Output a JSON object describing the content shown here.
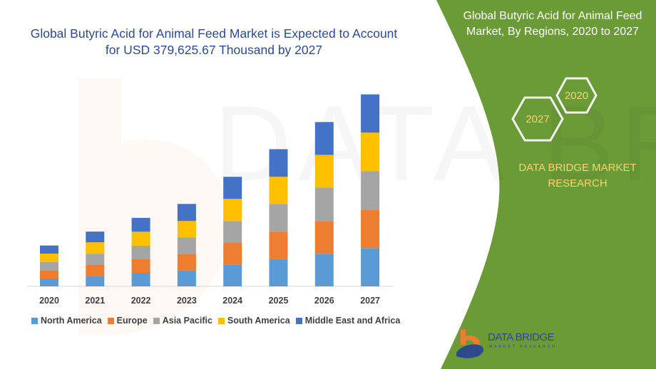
{
  "title": "Global  Butyric Acid for Animal Feed Market is Expected to Account for USD 379,625.67 Thousand by 2027",
  "side_panel": {
    "title": "Global  Butyric Acid for Animal Feed Market, By Regions, 2020 to 2027",
    "hex_labels": [
      "2020",
      "2027"
    ],
    "brand": "DATA BRIDGE MARKET RESEARCH",
    "logo_text": "DATA BRIDGE",
    "logo_subtext": "MARKET RESEARCH",
    "panel_color": "#6b9b37",
    "accent_text_color": "#f5d76e"
  },
  "watermark": "DATA BRIDGE",
  "chart_data": {
    "type": "bar",
    "stacked": true,
    "title": "",
    "xlabel": "",
    "ylabel": "",
    "unit": "USD Thousand",
    "ylim": [
      0,
      400000
    ],
    "grid": false,
    "legend_position": "bottom",
    "categories": [
      "2020",
      "2021",
      "2022",
      "2023",
      "2024",
      "2025",
      "2026",
      "2027"
    ],
    "series": [
      {
        "name": "North America",
        "color": "#5b9bd5",
        "values": [
          15500,
          20700,
          26800,
          32000,
          43200,
          54500,
          64400,
          75700
        ]
      },
      {
        "name": "Europe",
        "color": "#ed7d31",
        "values": [
          16400,
          22600,
          27700,
          32400,
          43700,
          53600,
          64900,
          76100
        ]
      },
      {
        "name": "Asia Pacific",
        "color": "#a5a5a5",
        "values": [
          16000,
          21200,
          25900,
          32400,
          42300,
          55000,
          65800,
          76100
        ]
      },
      {
        "name": "South America",
        "color": "#ffc000",
        "values": [
          16900,
          22600,
          27700,
          32400,
          43700,
          53600,
          64900,
          76100
        ]
      },
      {
        "name": "Middle East and Africa",
        "color": "#4472c4",
        "values": [
          16000,
          21200,
          27300,
          33800,
          43700,
          54500,
          64900,
          75600
        ]
      }
    ]
  }
}
